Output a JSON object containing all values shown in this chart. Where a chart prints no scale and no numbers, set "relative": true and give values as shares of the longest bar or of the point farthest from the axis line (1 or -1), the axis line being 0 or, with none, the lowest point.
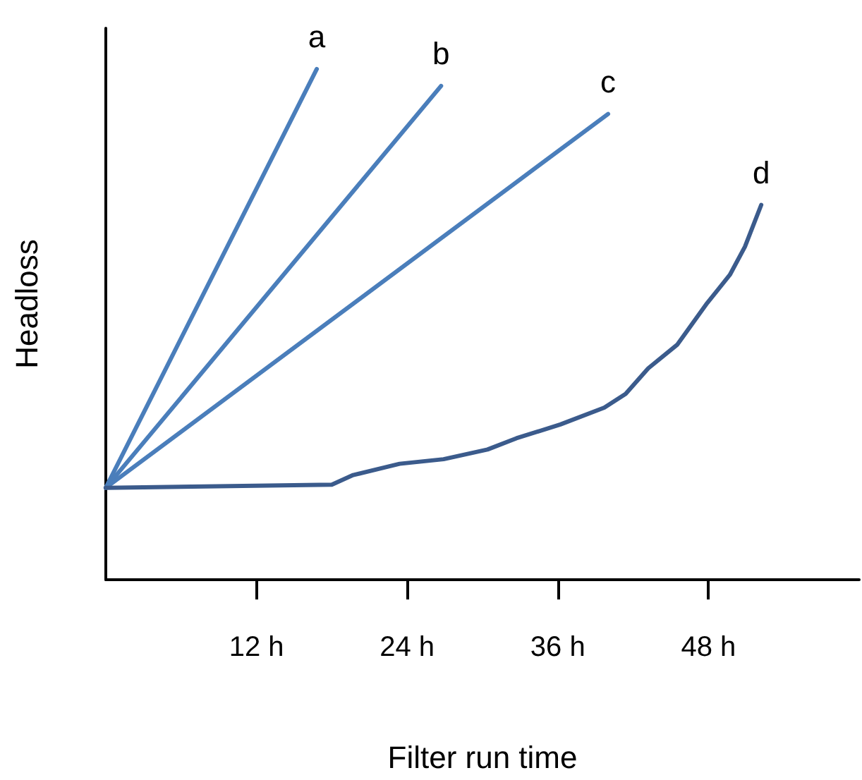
{
  "chart_data": {
    "type": "line",
    "relative": true,
    "xlabel": "Filter run time",
    "ylabel": "Headloss",
    "xlim": [
      0,
      60
    ],
    "xticks": [
      {
        "value": 12,
        "label": "12 h"
      },
      {
        "value": 24,
        "label": "24 h"
      },
      {
        "value": 36,
        "label": "36 h"
      },
      {
        "value": 48,
        "label": "48 h"
      }
    ],
    "grid": false,
    "legend": false,
    "marker": "none",
    "line_style": "solid",
    "series": [
      {
        "name": "a",
        "color": "#4a7ebb",
        "x": [
          0,
          16.8
        ],
        "values": [
          0.18,
          1
        ]
      },
      {
        "name": "b",
        "color": "#4a7ebb",
        "x": [
          0,
          26.7
        ],
        "values": [
          0.18,
          0.967
        ]
      },
      {
        "name": "c",
        "color": "#4a7ebb",
        "x": [
          0,
          40
        ],
        "values": [
          0.18,
          0.912
        ]
      },
      {
        "name": "d",
        "color": "#3b5b8c",
        "x": [
          0,
          18,
          19.7,
          23.4,
          26.9,
          30.4,
          32.7,
          36.2,
          39.7,
          41.4,
          43.2,
          45.5,
          47.9,
          49.7,
          50.9,
          52.2
        ],
        "values": [
          0.18,
          0.186,
          0.205,
          0.227,
          0.236,
          0.255,
          0.277,
          0.304,
          0.337,
          0.364,
          0.414,
          0.46,
          0.542,
          0.597,
          0.652,
          0.734
        ]
      }
    ]
  }
}
